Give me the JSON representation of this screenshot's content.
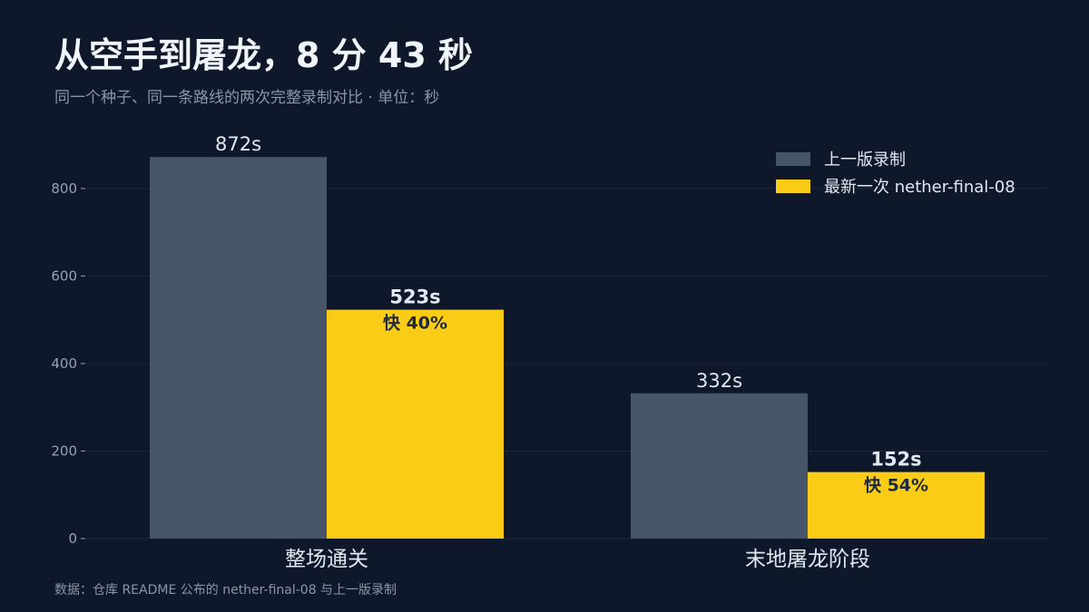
{
  "title": "从空手到屠龙，8 分 43 秒",
  "subtitle": "同一个种子、同一条路线的两次完整录制对比 · 单位：秒",
  "source": "数据：仓库 README 公布的 nether-final-08 与上一版录制",
  "colors": {
    "background": "#0f172a",
    "previous": "#475569",
    "latest": "#facc15",
    "grid": "#1e293b",
    "axis_text": "#94a3b8",
    "label_text": "#e2e8f0",
    "latest_label_text": "#1e293b"
  },
  "chart_data": {
    "type": "bar",
    "categories": [
      "整场通关",
      "末地屠龙阶段"
    ],
    "series": [
      {
        "name": "上一版录制",
        "values": [
          872,
          332
        ],
        "labels": [
          "872s",
          "332s"
        ]
      },
      {
        "name": "最新一次 nether-final-08",
        "values": [
          523,
          152
        ],
        "labels": [
          "523s",
          "152s"
        ],
        "speedup_labels": [
          "快 40%",
          "快 54%"
        ]
      }
    ],
    "ylim": [
      0,
      920
    ],
    "yticks": [
      0,
      200,
      400,
      600,
      800
    ],
    "grid": true,
    "legend_position": "top-right"
  }
}
